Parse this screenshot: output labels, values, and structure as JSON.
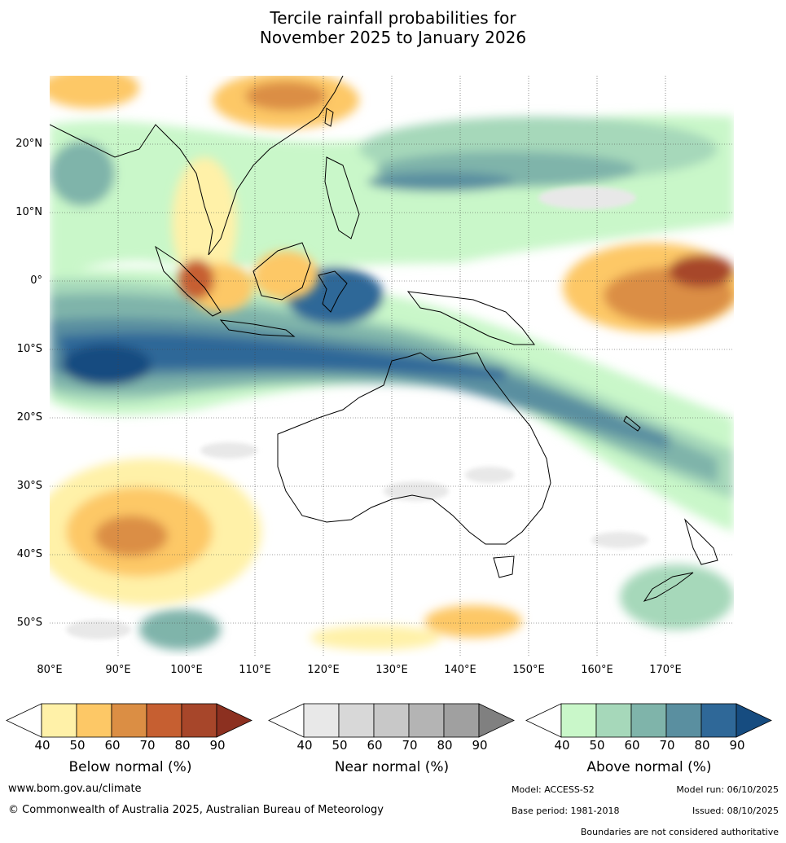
{
  "title": {
    "line1": "Tercile rainfall probabilities for",
    "line2": "November 2025 to January 2026"
  },
  "map": {
    "lat_labels": [
      "20°N",
      "10°N",
      "0°",
      "10°S",
      "20°S",
      "30°S",
      "40°S",
      "50°S"
    ],
    "lon_labels": [
      "80°E",
      "90°E",
      "100°E",
      "110°E",
      "120°E",
      "130°E",
      "140°E",
      "150°E",
      "160°E",
      "170°E"
    ]
  },
  "legends": {
    "below": {
      "title": "Below normal (%)",
      "ticks": [
        "40",
        "50",
        "60",
        "70",
        "80",
        "90"
      ],
      "colors": [
        "#fff1a8",
        "#fdc866",
        "#db8e44",
        "#c65f31",
        "#a7462a",
        "#8c3020"
      ]
    },
    "near": {
      "title": "Near normal (%)",
      "ticks": [
        "40",
        "50",
        "60",
        "70",
        "80",
        "90"
      ],
      "colors": [
        "#e8e8e8",
        "#d8d8d8",
        "#c8c8c8",
        "#b4b4b4",
        "#a0a0a0",
        "#808080"
      ]
    },
    "above": {
      "title": "Above normal (%)",
      "ticks": [
        "40",
        "50",
        "60",
        "70",
        "80",
        "90"
      ],
      "colors": [
        "#c9f7c9",
        "#a6d8ba",
        "#7fb4aa",
        "#5a8fa0",
        "#2f6898",
        "#164c80"
      ]
    }
  },
  "footer": {
    "website": "www.bom.gov.au/climate",
    "copyright": "© Commonwealth of Australia 2025, Australian Bureau of Meteorology",
    "model": "Model: ACCESS-S2",
    "model_run": "Model run: 06/10/2025",
    "base_period": "Base period: 1981-2018",
    "issued": "Issued: 08/10/2025",
    "boundaries_note": "Boundaries are not considered authoritative"
  }
}
